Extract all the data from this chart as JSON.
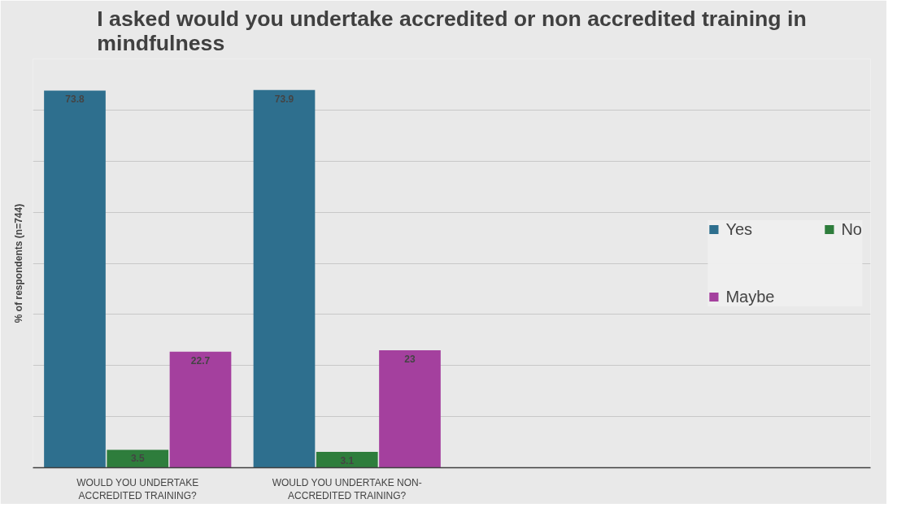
{
  "chart_data": {
    "type": "bar",
    "title": "I asked would you undertake accredited or non accredited training in mindfulness",
    "ylabel": "% of respondents (n=744)",
    "categories": [
      "WOULD YOU UNDERTAKE ACCREDITED TRAINING?",
      "WOULD YOU UNDERTAKE NON-ACCREDITED TRAINING?"
    ],
    "series": [
      {
        "name": "Yes",
        "color": "#2e6f8e",
        "values": [
          73.8,
          73.9
        ]
      },
      {
        "name": "No",
        "color": "#2e7d3c",
        "values": [
          3.5,
          3.1
        ]
      },
      {
        "name": "Maybe",
        "color": "#a4409e",
        "values": [
          22.7,
          23
        ]
      }
    ],
    "ylim": [
      0,
      80
    ],
    "yticks": [
      {
        "value": 0,
        "label": null
      },
      {
        "value": 10,
        "label": null
      },
      {
        "value": 20,
        "label": null
      },
      {
        "value": 30,
        "label": null
      },
      {
        "value": 40,
        "label": null
      },
      {
        "value": 50,
        "label": null
      },
      {
        "value": 60,
        "label": null
      },
      {
        "value": 70,
        "label": null
      },
      {
        "value": 80,
        "label": null
      }
    ],
    "tick_labels": "x",
    "grid": "y",
    "legend": "right",
    "data_labels": true
  }
}
